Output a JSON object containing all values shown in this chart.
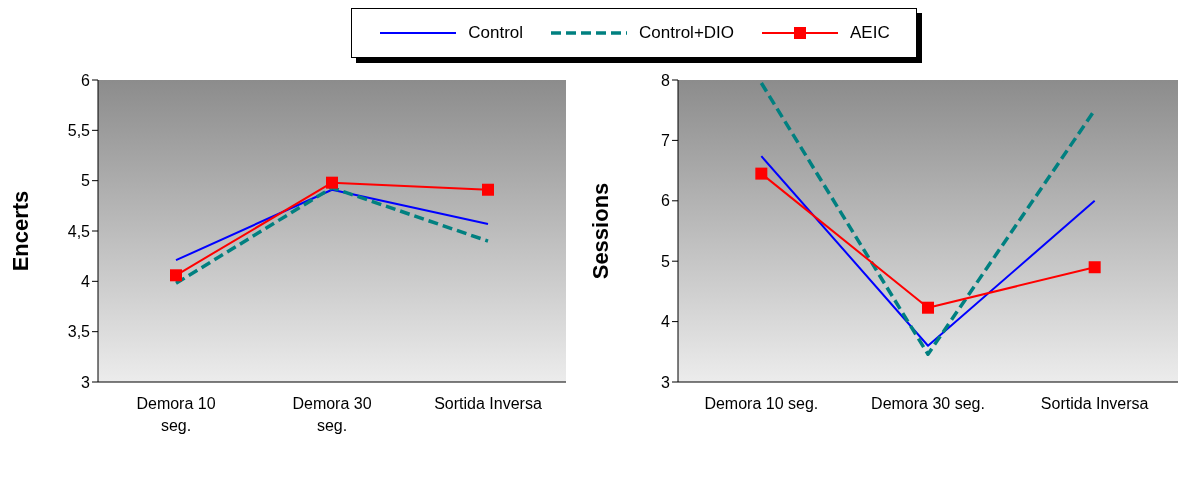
{
  "chart_data": [
    {
      "type": "line",
      "ylabel": "Encerts",
      "categories": [
        "Demora 10 seg.",
        "Demora 30 seg.",
        "Sortida Inversa"
      ],
      "ylim": [
        3,
        6
      ],
      "yticks": [
        3,
        {
          "value": 3.5,
          "label": "3,5"
        },
        4,
        {
          "value": 4.5,
          "label": "4,5"
        },
        5,
        {
          "value": 5.5,
          "label": "5,5"
        },
        6
      ],
      "grid": false,
      "legend": "top",
      "series": [
        {
          "name": "Control",
          "color": "#0000ff",
          "values": [
            4.21,
            4.91,
            4.57
          ],
          "marker": "none",
          "line_style": "solid"
        },
        {
          "name": "Control+DIO",
          "color": "#008080",
          "values": [
            3.98,
            4.93,
            4.4
          ],
          "marker": "none",
          "line_style": "dashed"
        },
        {
          "name": "AEIC",
          "color": "#ff0000",
          "values": [
            4.06,
            4.98,
            4.91
          ],
          "marker": "square",
          "line_style": "solid"
        }
      ]
    },
    {
      "type": "line",
      "ylabel": "Sessions",
      "categories": [
        "Demora 10 seg.",
        "Demora 30 seg.",
        "Sortida Inversa"
      ],
      "ylim": [
        3,
        8
      ],
      "yticks": [
        3,
        4,
        5,
        6,
        7,
        8
      ],
      "grid": false,
      "legend": "top",
      "series": [
        {
          "name": "Control",
          "color": "#0000ff",
          "values": [
            6.74,
            3.6,
            6.0
          ],
          "marker": "none",
          "line_style": "solid"
        },
        {
          "name": "Control+DIO",
          "color": "#008080",
          "values": [
            7.95,
            3.46,
            7.5
          ],
          "marker": "none",
          "line_style": "dashed"
        },
        {
          "name": "AEIC",
          "color": "#ff0000",
          "values": [
            6.45,
            4.23,
            4.9
          ],
          "marker": "square",
          "line_style": "solid"
        }
      ]
    }
  ]
}
